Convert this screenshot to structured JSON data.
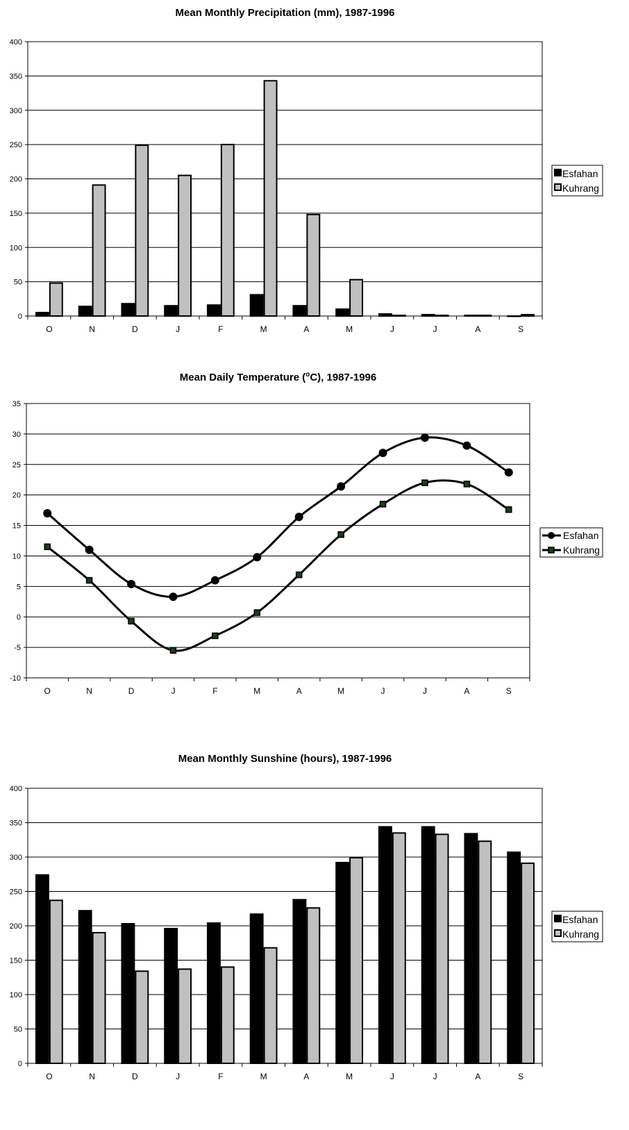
{
  "chart_data": [
    {
      "id": "precip",
      "type": "bar",
      "title": "Mean Monthly Precipitation (mm), 1987-1996",
      "categories": [
        "O",
        "N",
        "D",
        "J",
        "F",
        "M",
        "A",
        "M",
        "J",
        "J",
        "A",
        "S"
      ],
      "ylim": [
        0,
        400
      ],
      "yticks": [
        0,
        50,
        100,
        150,
        200,
        250,
        300,
        350,
        400
      ],
      "grid": true,
      "legend_position": "right",
      "series": [
        {
          "name": "Esfahan",
          "color": "#000000",
          "values": [
            5,
            14,
            18,
            15,
            16,
            31,
            15,
            10,
            3,
            2,
            1,
            0
          ]
        },
        {
          "name": "Kuhrang",
          "color": "#c0c0c0",
          "values": [
            48,
            191,
            249,
            205,
            250,
            343,
            148,
            53,
            1,
            1,
            1,
            2
          ]
        }
      ]
    },
    {
      "id": "temp",
      "type": "line",
      "title": "Mean Daily Temperature (",
      "title_sup": "o",
      "title_end": "C), 1987-1996",
      "categories": [
        "O",
        "N",
        "D",
        "J",
        "F",
        "M",
        "A",
        "M",
        "J",
        "J",
        "A",
        "S"
      ],
      "ylim": [
        -10,
        35
      ],
      "yticks": [
        -10,
        -5,
        0,
        5,
        10,
        15,
        20,
        25,
        30,
        35
      ],
      "grid": true,
      "legend_position": "right",
      "series": [
        {
          "name": "Esfahan",
          "marker": "circle",
          "color": "#000000",
          "values": [
            17.0,
            11.0,
            5.4,
            3.3,
            6.0,
            9.8,
            16.4,
            21.4,
            26.9,
            29.4,
            28.1,
            23.7
          ]
        },
        {
          "name": "Kuhrang",
          "marker": "square",
          "color": "#000000",
          "marker_fill": "#1f3a1f",
          "values": [
            11.5,
            6.0,
            -0.7,
            -5.5,
            -3.1,
            0.7,
            6.9,
            13.5,
            18.5,
            22.0,
            21.8,
            17.6
          ]
        }
      ]
    },
    {
      "id": "sun",
      "type": "bar",
      "title": "Mean Monthly Sunshine (hours), 1987-1996",
      "categories": [
        "O",
        "N",
        "D",
        "J",
        "F",
        "M",
        "A",
        "M",
        "J",
        "J",
        "A",
        "S"
      ],
      "ylim": [
        0,
        400
      ],
      "yticks": [
        0,
        50,
        100,
        150,
        200,
        250,
        300,
        350,
        400
      ],
      "grid": true,
      "legend_position": "right",
      "series": [
        {
          "name": "Esfahan",
          "color": "#000000",
          "values": [
            274,
            222,
            203,
            196,
            204,
            217,
            238,
            292,
            344,
            344,
            334,
            307
          ]
        },
        {
          "name": "Kuhrang",
          "color": "#c0c0c0",
          "values": [
            237,
            190,
            134,
            137,
            140,
            168,
            226,
            299,
            335,
            333,
            323,
            291
          ]
        }
      ]
    }
  ]
}
